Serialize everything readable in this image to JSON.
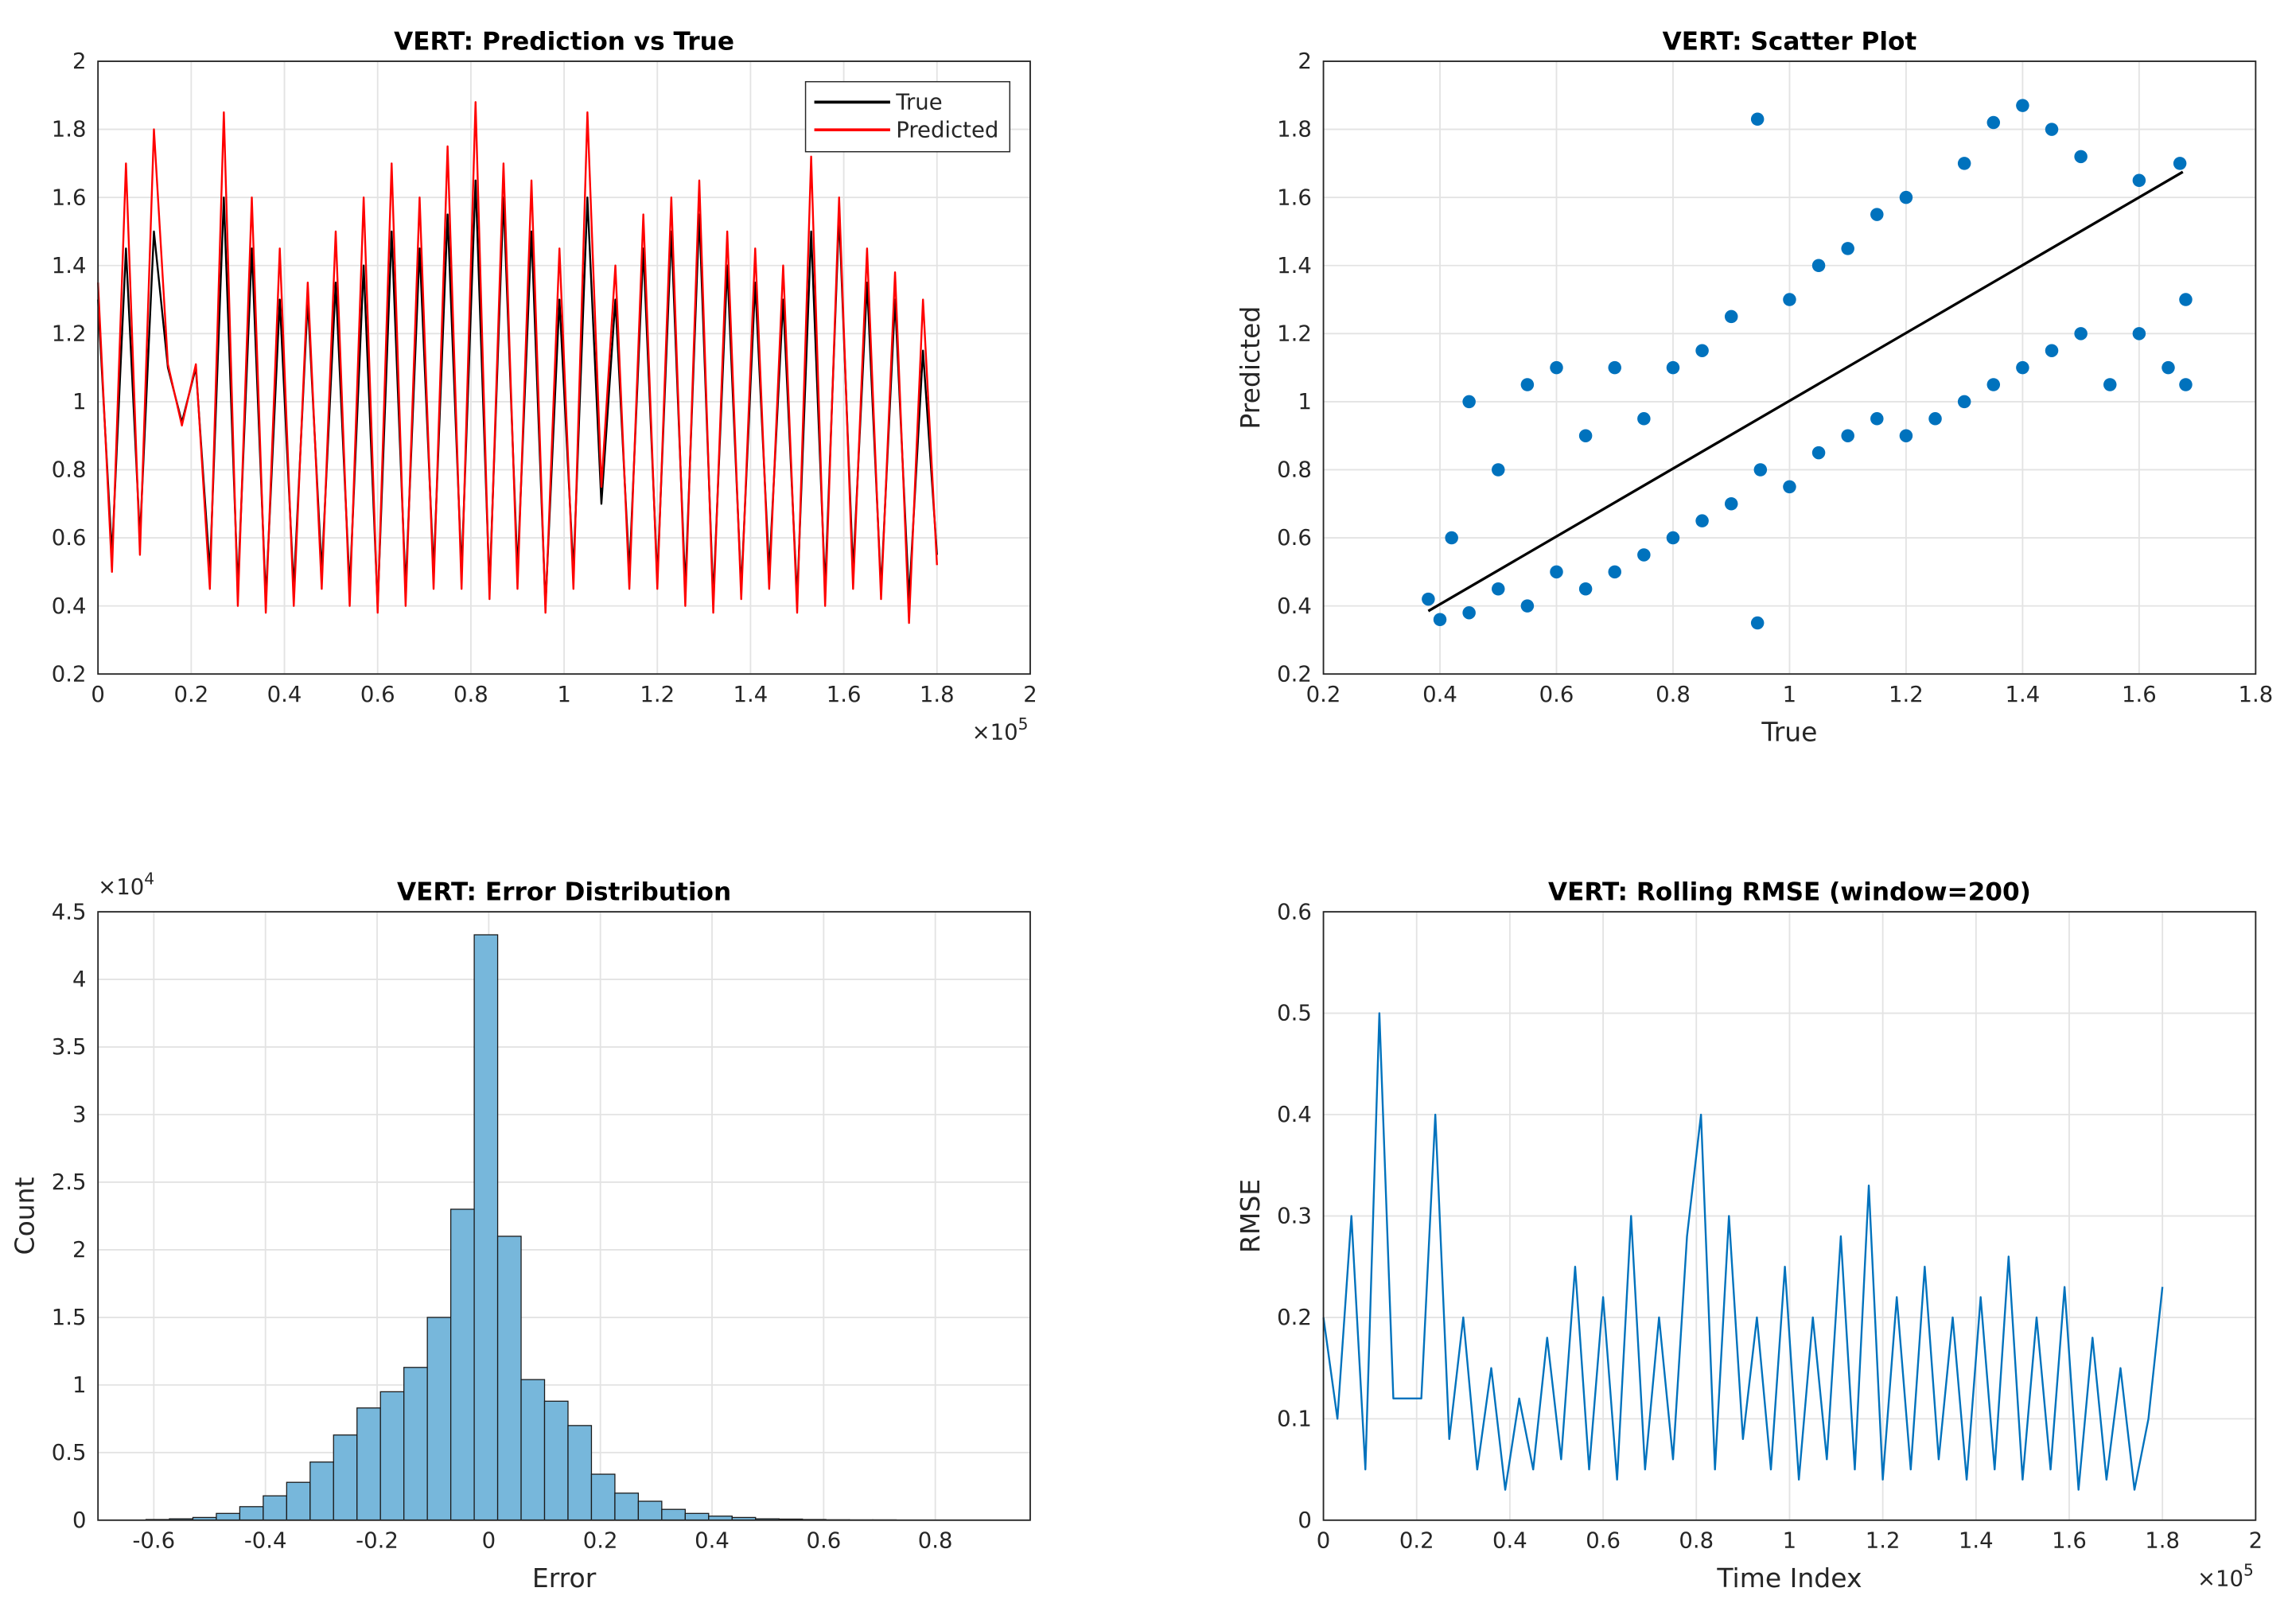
{
  "chart_data": [
    {
      "type": "line",
      "title": "VERT: Prediction vs True",
      "x": [
        0,
        0.03,
        0.06,
        0.09,
        0.12,
        0.15,
        0.18,
        0.21,
        0.24,
        0.27,
        0.3,
        0.33,
        0.36,
        0.39,
        0.42,
        0.45,
        0.48,
        0.51,
        0.54,
        0.57,
        0.6,
        0.63,
        0.66,
        0.69,
        0.72,
        0.75,
        0.78,
        0.81,
        0.84,
        0.87,
        0.9,
        0.93,
        0.96,
        0.99,
        1.02,
        1.05,
        1.08,
        1.11,
        1.14,
        1.17,
        1.2,
        1.23,
        1.26,
        1.29,
        1.32,
        1.35,
        1.38,
        1.41,
        1.44,
        1.47,
        1.5,
        1.53,
        1.56,
        1.59,
        1.62,
        1.65,
        1.68,
        1.71,
        1.74,
        1.77,
        1.8
      ],
      "series": [
        {
          "name": "True",
          "color": "#000000",
          "values": [
            1.3,
            0.55,
            1.45,
            0.6,
            1.5,
            1.1,
            0.94,
            1.1,
            0.5,
            1.6,
            0.45,
            1.45,
            0.42,
            1.3,
            0.45,
            1.3,
            0.5,
            1.35,
            0.45,
            1.4,
            0.4,
            1.5,
            0.45,
            1.45,
            0.5,
            1.55,
            0.5,
            1.65,
            0.45,
            1.6,
            0.5,
            1.5,
            0.4,
            1.3,
            0.5,
            1.6,
            0.7,
            1.3,
            0.5,
            1.45,
            0.48,
            1.5,
            0.45,
            1.55,
            0.42,
            1.4,
            0.45,
            1.35,
            0.5,
            1.3,
            0.42,
            1.5,
            0.45,
            1.55,
            0.5,
            1.35,
            0.45,
            1.3,
            0.42,
            1.15,
            0.55
          ]
        },
        {
          "name": "Predicted",
          "color": "#ff0000",
          "values": [
            1.35,
            0.5,
            1.7,
            0.55,
            1.8,
            1.11,
            0.93,
            1.11,
            0.45,
            1.85,
            0.4,
            1.6,
            0.38,
            1.45,
            0.4,
            1.35,
            0.45,
            1.5,
            0.4,
            1.6,
            0.38,
            1.7,
            0.4,
            1.6,
            0.45,
            1.75,
            0.45,
            1.88,
            0.42,
            1.7,
            0.45,
            1.65,
            0.38,
            1.45,
            0.45,
            1.85,
            0.75,
            1.4,
            0.45,
            1.55,
            0.45,
            1.6,
            0.4,
            1.65,
            0.38,
            1.5,
            0.42,
            1.45,
            0.45,
            1.4,
            0.38,
            1.72,
            0.4,
            1.6,
            0.45,
            1.45,
            0.42,
            1.38,
            0.35,
            1.3,
            0.52
          ]
        }
      ],
      "xlim": [
        0,
        2
      ],
      "xticks": [
        0,
        0.2,
        0.4,
        0.6,
        0.8,
        1,
        1.2,
        1.4,
        1.6,
        1.8,
        2
      ],
      "ylim": [
        0.2,
        2
      ],
      "yticks": [
        0.2,
        0.4,
        0.6,
        0.8,
        1,
        1.2,
        1.4,
        1.6,
        1.8,
        2
      ],
      "x_exponent": {
        "base": "×10",
        "power": "5"
      },
      "grid": true,
      "legend": "upper right"
    },
    {
      "type": "scatter",
      "title": "VERT: Scatter Plot",
      "xlabel": "True",
      "ylabel": "Predicted",
      "color": "#0072bd",
      "x": [
        0.38,
        0.4,
        0.42,
        0.45,
        0.45,
        0.5,
        0.5,
        0.55,
        0.55,
        0.6,
        0.6,
        0.65,
        0.65,
        0.7,
        0.7,
        0.75,
        0.75,
        0.8,
        0.8,
        0.85,
        0.85,
        0.9,
        0.9,
        0.945,
        0.945,
        0.95,
        1.0,
        1.0,
        1.05,
        1.05,
        1.1,
        1.1,
        1.15,
        1.15,
        1.2,
        1.2,
        1.25,
        1.3,
        1.3,
        1.35,
        1.35,
        1.4,
        1.4,
        1.45,
        1.45,
        1.5,
        1.5,
        1.55,
        1.6,
        1.6,
        1.65,
        1.67,
        1.68,
        1.68
      ],
      "y": [
        0.42,
        0.36,
        0.6,
        0.38,
        1.0,
        0.45,
        0.8,
        0.4,
        1.05,
        0.5,
        1.1,
        0.45,
        0.9,
        0.5,
        1.1,
        0.55,
        0.95,
        0.6,
        1.1,
        0.65,
        1.15,
        0.7,
        1.25,
        0.35,
        1.83,
        0.8,
        0.75,
        1.3,
        0.85,
        1.4,
        0.9,
        1.45,
        0.95,
        1.55,
        0.9,
        1.6,
        0.95,
        1.0,
        1.7,
        1.05,
        1.82,
        1.1,
        1.87,
        1.15,
        1.8,
        1.2,
        1.72,
        1.05,
        1.2,
        1.65,
        1.1,
        1.7,
        1.3,
        1.05
      ],
      "fit": {
        "x": [
          0.38,
          1.675
        ],
        "y": [
          0.385,
          1.675
        ],
        "color": "#000000"
      },
      "xlim": [
        0.2,
        1.8
      ],
      "xticks": [
        0.2,
        0.4,
        0.6,
        0.8,
        1,
        1.2,
        1.4,
        1.6,
        1.8
      ],
      "ylim": [
        0.2,
        2
      ],
      "yticks": [
        0.2,
        0.4,
        0.6,
        0.8,
        1,
        1.2,
        1.4,
        1.6,
        1.8,
        2
      ],
      "grid": true
    },
    {
      "type": "histogram",
      "title": "VERT: Error Distribution",
      "xlabel": "Error",
      "ylabel": "Count",
      "color": "#77b7db",
      "bins": [
        -0.614,
        -0.572,
        -0.53,
        -0.488,
        -0.446,
        -0.404,
        -0.362,
        -0.32,
        -0.278,
        -0.236,
        -0.194,
        -0.152,
        -0.11,
        -0.068,
        -0.026,
        0.016,
        0.058,
        0.1,
        0.142,
        0.184,
        0.226,
        0.268,
        0.31,
        0.352,
        0.394,
        0.436,
        0.478,
        0.52,
        0.562,
        0.604,
        0.646,
        0.688,
        0.73,
        0.772,
        0.814,
        0.856,
        0.898
      ],
      "values": [
        0.005,
        0.01,
        0.02,
        0.05,
        0.1,
        0.18,
        0.28,
        0.43,
        0.63,
        0.83,
        0.95,
        1.13,
        1.5,
        2.3,
        4.33,
        2.1,
        1.04,
        0.88,
        0.7,
        0.34,
        0.2,
        0.14,
        0.08,
        0.05,
        0.03,
        0.02,
        0.01,
        0.008,
        0.005,
        0.003,
        0.002,
        0.002,
        0.001,
        0.001,
        0.001,
        0.001
      ],
      "xlim": [
        -0.7,
        0.97
      ],
      "xticks": [
        -0.6,
        -0.4,
        -0.2,
        0,
        0.2,
        0.4,
        0.6,
        0.8
      ],
      "ylim": [
        0,
        4.5
      ],
      "yticks": [
        0,
        0.5,
        1,
        1.5,
        2,
        2.5,
        3,
        3.5,
        4,
        4.5
      ],
      "y_exponent": {
        "base": "×10",
        "power": "4"
      },
      "grid": true
    },
    {
      "type": "line",
      "title": "VERT: Rolling RMSE (window=200)",
      "xlabel": "Time Index",
      "ylabel": "RMSE",
      "x": [
        0,
        0.03,
        0.06,
        0.09,
        0.12,
        0.15,
        0.18,
        0.21,
        0.24,
        0.27,
        0.3,
        0.33,
        0.36,
        0.39,
        0.42,
        0.45,
        0.48,
        0.51,
        0.54,
        0.57,
        0.6,
        0.63,
        0.66,
        0.69,
        0.72,
        0.75,
        0.78,
        0.81,
        0.84,
        0.87,
        0.9,
        0.93,
        0.96,
        0.99,
        1.02,
        1.05,
        1.08,
        1.11,
        1.14,
        1.17,
        1.2,
        1.23,
        1.26,
        1.29,
        1.32,
        1.35,
        1.38,
        1.41,
        1.44,
        1.47,
        1.5,
        1.53,
        1.56,
        1.59,
        1.62,
        1.65,
        1.68,
        1.71,
        1.74,
        1.77,
        1.8
      ],
      "series": [
        {
          "color": "#0072bd",
          "values": [
            0.2,
            0.1,
            0.3,
            0.05,
            0.5,
            0.12,
            0.12,
            0.12,
            0.4,
            0.08,
            0.2,
            0.05,
            0.15,
            0.03,
            0.12,
            0.05,
            0.18,
            0.06,
            0.25,
            0.05,
            0.22,
            0.04,
            0.3,
            0.05,
            0.2,
            0.06,
            0.28,
            0.4,
            0.05,
            0.3,
            0.08,
            0.2,
            0.05,
            0.25,
            0.04,
            0.2,
            0.06,
            0.28,
            0.05,
            0.33,
            0.04,
            0.22,
            0.05,
            0.25,
            0.06,
            0.2,
            0.04,
            0.22,
            0.05,
            0.26,
            0.04,
            0.2,
            0.05,
            0.23,
            0.03,
            0.18,
            0.04,
            0.15,
            0.03,
            0.1,
            0.23
          ]
        }
      ],
      "xlim": [
        0,
        2
      ],
      "xticks": [
        0,
        0.2,
        0.4,
        0.6,
        0.8,
        1,
        1.2,
        1.4,
        1.6,
        1.8,
        2
      ],
      "ylim": [
        0,
        0.6
      ],
      "yticks": [
        0,
        0.1,
        0.2,
        0.3,
        0.4,
        0.5,
        0.6
      ],
      "x_exponent": {
        "base": "×10",
        "power": "5"
      },
      "grid": true
    }
  ]
}
